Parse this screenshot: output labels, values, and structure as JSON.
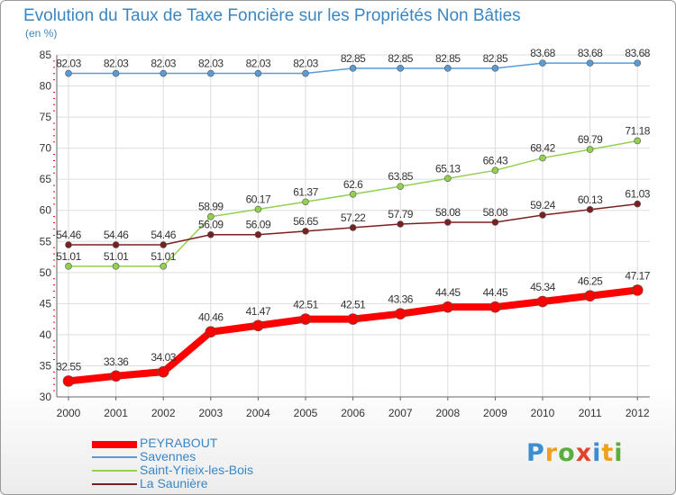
{
  "title": "Evolution du Taux de Taxe Foncière sur les Propriétés Non Bâties",
  "unit": "(en %)",
  "brand": {
    "text": "Proxiti",
    "p": "P",
    "r": "r",
    "o": "o",
    "x": "x",
    "i": "i",
    "t": "t",
    "i2": "i"
  },
  "colors": {
    "peyrabout": "#ff0000",
    "savennes": "#5a9bd5",
    "saint_yrieix": "#92d050",
    "la_sauniere": "#7b2020",
    "grid": "#dddddd",
    "axis": "#666666",
    "tick_red": "#ff0000"
  },
  "chart_data": {
    "type": "line",
    "title": "Evolution du Taux de Taxe Foncière sur les Propriétés Non Bâties",
    "ylabel": "(en %)",
    "xlabel": "",
    "x": [
      "2000",
      "2001",
      "2002",
      "2003",
      "2004",
      "2005",
      "2006",
      "2007",
      "2008",
      "2009",
      "2010",
      "2011",
      "2012"
    ],
    "ylim": [
      30,
      85
    ],
    "yticks": [
      30,
      35,
      40,
      45,
      50,
      55,
      60,
      65,
      70,
      75,
      80,
      85
    ],
    "grid": true,
    "legend_position": "bottom-left",
    "series": [
      {
        "key": "peyrabout",
        "name": "PEYRABOUT",
        "values": [
          32.55,
          33.36,
          34.03,
          40.46,
          41.47,
          42.51,
          42.51,
          43.36,
          44.45,
          44.45,
          45.34,
          46.25,
          47.17
        ],
        "labels": [
          "32.55",
          "33.36",
          "34.03",
          "40.46",
          "41.47",
          "42.51",
          "42.51",
          "43.36",
          "44.45",
          "44.45",
          "45.34",
          "46.25",
          "47.17"
        ]
      },
      {
        "key": "savennes",
        "name": "Savennes",
        "values": [
          82.03,
          82.03,
          82.03,
          82.03,
          82.03,
          82.03,
          82.85,
          82.85,
          82.85,
          82.85,
          83.68,
          83.68,
          83.68
        ],
        "labels": [
          "82.03",
          "82.03",
          "82.03",
          "82.03",
          "82.03",
          "82.03",
          "82.85",
          "82.85",
          "82.85",
          "82.85",
          "83.68",
          "83.68",
          "83.68"
        ]
      },
      {
        "key": "saint_yrieix",
        "name": "Saint-Yrieix-les-Bois",
        "values": [
          51.01,
          51.01,
          51.01,
          58.99,
          60.17,
          61.37,
          62.6,
          63.85,
          65.13,
          66.43,
          68.42,
          69.79,
          71.18
        ],
        "labels": [
          "51.01",
          "51.01",
          "51.01",
          "58.99",
          "60.17",
          "61.37",
          "62.6",
          "63.85",
          "65.13",
          "66.43",
          "68.42",
          "69.79",
          "71.18"
        ]
      },
      {
        "key": "la_sauniere",
        "name": "La Saunière",
        "values": [
          54.46,
          54.46,
          54.46,
          56.09,
          56.09,
          56.65,
          57.22,
          57.79,
          58.08,
          58.08,
          59.24,
          60.13,
          61.03
        ],
        "labels": [
          "54.46",
          "54.46",
          "54.46",
          "56.09",
          "56.09",
          "56.65",
          "57.22",
          "57.79",
          "58.08",
          "58.08",
          "59.24",
          "60.13",
          "61.03"
        ]
      }
    ]
  }
}
